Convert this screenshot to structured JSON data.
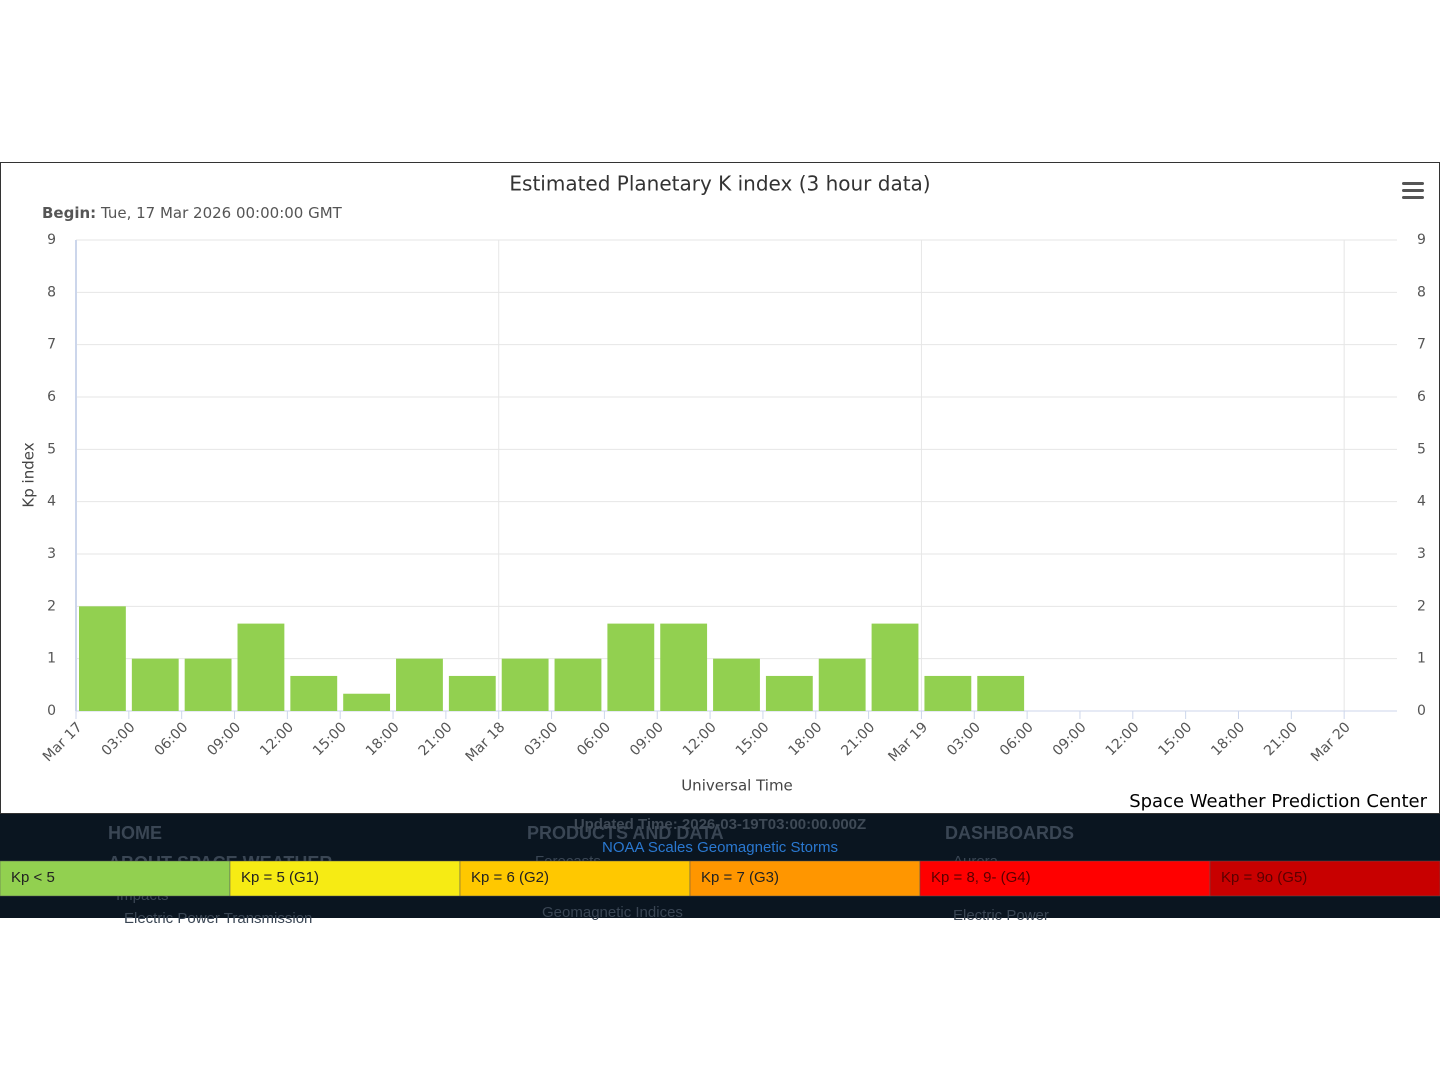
{
  "chart_data": {
    "type": "bar",
    "title": "Estimated Planetary K index (3 hour data)",
    "subtitle_label": "Begin:",
    "subtitle": "Tue, 17 Mar 2026 00:00:00 GMT",
    "x_label": "Universal Time",
    "y_label": "Kp index",
    "credit": "Space Weather Prediction Center",
    "x": [
      "Mar 17",
      "03:00",
      "06:00",
      "09:00",
      "12:00",
      "15:00",
      "18:00",
      "21:00",
      "Mar 18",
      "03:00",
      "06:00",
      "09:00",
      "12:00",
      "15:00",
      "18:00",
      "21:00",
      "Mar 19",
      "03:00"
    ],
    "values": [
      2,
      1,
      1,
      1.67,
      0.67,
      0.33,
      1,
      0.67,
      1,
      1,
      1.67,
      1.67,
      1,
      0.67,
      1,
      1.67,
      0.67,
      0.67
    ],
    "color": "#92d050",
    "xticks": [
      "Mar 17",
      "03:00",
      "06:00",
      "09:00",
      "12:00",
      "15:00",
      "18:00",
      "21:00",
      "Mar 18",
      "03:00",
      "06:00",
      "09:00",
      "12:00",
      "15:00",
      "18:00",
      "21:00",
      "Mar 19",
      "03:00",
      "06:00",
      "09:00",
      "12:00",
      "15:00",
      "18:00",
      "21:00",
      "Mar 20"
    ],
    "ylim": [
      0,
      9
    ],
    "yticks": [
      0,
      1,
      2,
      3,
      4,
      5,
      6,
      7,
      8,
      9
    ],
    "y2lim": [
      0,
      9
    ],
    "y2ticks": [
      0,
      1,
      2,
      3,
      4,
      5,
      6,
      7,
      8,
      9
    ],
    "grid": true
  },
  "footer": {
    "updated": "Updated Time: 2026-03-19T03:00:00.000Z",
    "scales_title": "NOAA Scales Geomagnetic Storms",
    "nav": [
      "HOME",
      "PRODUCTS AND DATA",
      "DASHBOARDS",
      "ABOUT SPACE WEATHER",
      "Forecasts",
      "Impacts",
      "Geomagnetic Indices",
      "Aurora",
      "Electric Power",
      "Electric Power Transmission"
    ],
    "scale": [
      {
        "label": "Kp < 5",
        "color": "#92d050"
      },
      {
        "label": "Kp = 5 (G1)",
        "color": "#f6eb14"
      },
      {
        "label": "Kp = 6 (G2)",
        "color": "#ffc800"
      },
      {
        "label": "Kp = 7 (G3)",
        "color": "#ff9600"
      },
      {
        "label": "Kp = 8, 9- (G4)",
        "color": "#ff0000"
      },
      {
        "label": "Kp = 9o (G5)",
        "color": "#c80000"
      }
    ]
  }
}
